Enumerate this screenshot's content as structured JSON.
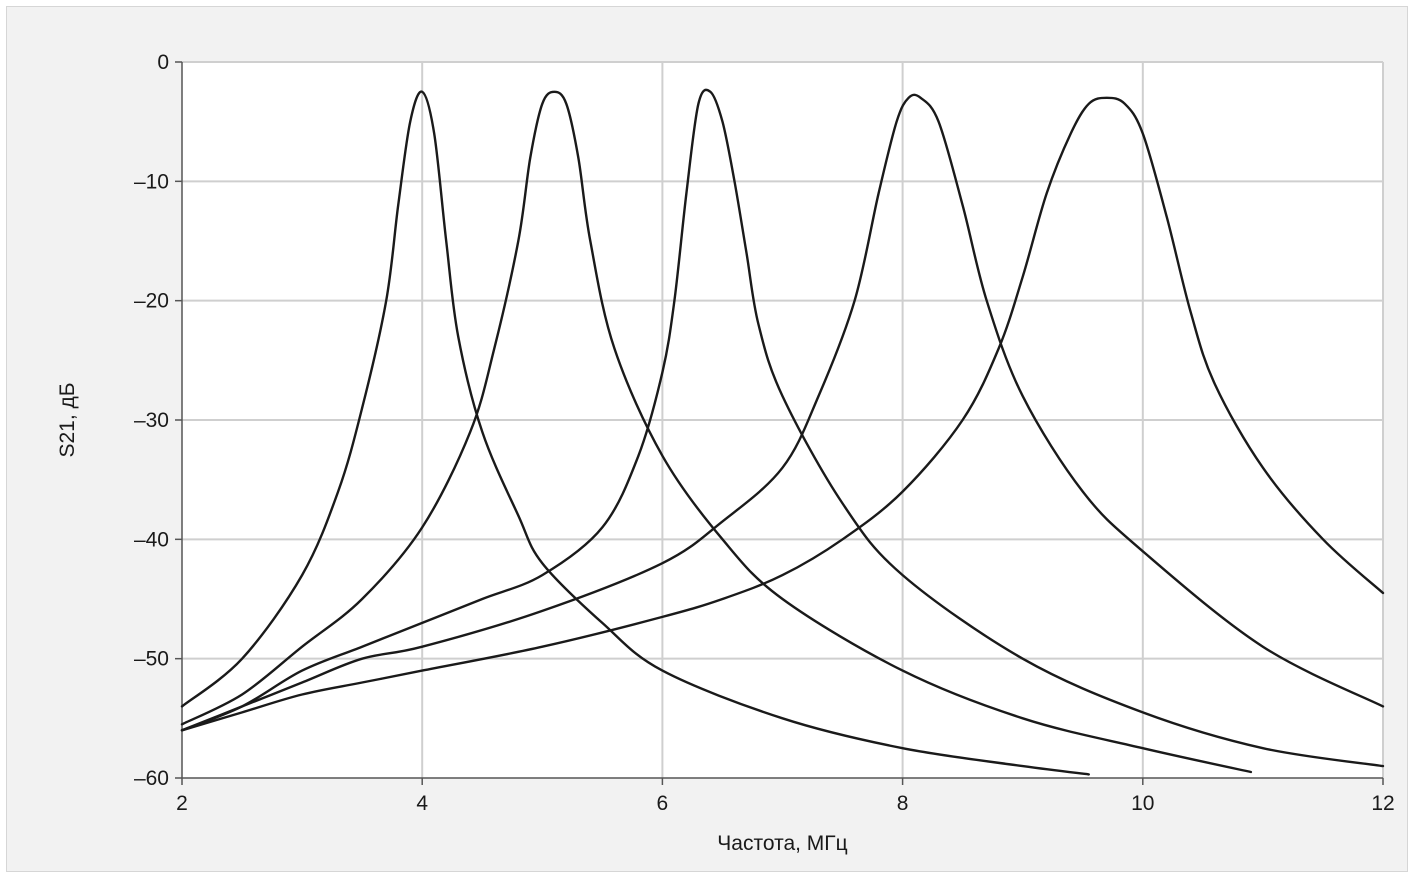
{
  "chart_data": {
    "type": "line",
    "title": "",
    "xlabel": "Частота, МГц",
    "ylabel": "S21, дБ",
    "xlim": [
      2,
      12
    ],
    "ylim": [
      -60,
      0
    ],
    "xticks": [
      2,
      4,
      6,
      8,
      10,
      12
    ],
    "yticks": [
      0,
      -10,
      -20,
      -30,
      -40,
      -50,
      -60
    ],
    "xtick_labels": [
      "2",
      "4",
      "6",
      "8",
      "10",
      "12"
    ],
    "ytick_labels": [
      "0",
      "–10",
      "–20",
      "–30",
      "–40",
      "–50",
      "–60"
    ],
    "grid": true,
    "line_color": "#1a1a1a",
    "series": [
      {
        "x": [
          2.0,
          2.5,
          3.0,
          3.3,
          3.5,
          3.7,
          3.8,
          3.9,
          4.0,
          4.1,
          4.2,
          4.3,
          4.5,
          4.8,
          5.0,
          5.5,
          6.0,
          7.0,
          8.0,
          9.0,
          9.55
        ],
        "y": [
          -54,
          -50,
          -43,
          -36,
          -29,
          -20,
          -12,
          -5,
          -2.5,
          -6,
          -15,
          -23,
          -31,
          -38,
          -42,
          -47,
          -51,
          -55,
          -57.5,
          -59,
          -59.7
        ]
      },
      {
        "x": [
          2.0,
          2.5,
          3.0,
          3.5,
          4.0,
          4.4,
          4.6,
          4.8,
          4.9,
          5.0,
          5.1,
          5.2,
          5.3,
          5.4,
          5.6,
          6.0,
          6.5,
          7.0,
          8.0,
          9.0,
          10.0,
          10.9
        ],
        "y": [
          -55.5,
          -53,
          -49,
          -45,
          -39,
          -31,
          -24,
          -15,
          -8,
          -3.5,
          -2.5,
          -3.5,
          -8,
          -15,
          -24,
          -33,
          -40,
          -45,
          -51,
          -55,
          -57.5,
          -59.5
        ]
      },
      {
        "x": [
          2.0,
          2.5,
          3.0,
          3.5,
          4.0,
          4.5,
          5.0,
          5.5,
          5.8,
          6.0,
          6.1,
          6.2,
          6.3,
          6.4,
          6.5,
          6.6,
          6.7,
          6.8,
          7.0,
          7.5,
          8.0,
          9.0,
          10.0,
          11.0,
          12.0
        ],
        "y": [
          -56,
          -54,
          -51,
          -49,
          -47,
          -45,
          -43,
          -39,
          -33,
          -26,
          -20,
          -11,
          -3.5,
          -2.5,
          -5,
          -10,
          -16,
          -22,
          -28,
          -37,
          -43,
          -50,
          -54.5,
          -57.5,
          -59
        ]
      },
      {
        "x": [
          2.0,
          2.5,
          3.0,
          3.5,
          4.0,
          5.0,
          6.0,
          6.5,
          7.0,
          7.3,
          7.6,
          7.8,
          7.95,
          8.05,
          8.15,
          8.3,
          8.5,
          8.7,
          9.0,
          9.5,
          10.0,
          11.0,
          12.0
        ],
        "y": [
          -56,
          -54,
          -52,
          -50,
          -49,
          -46,
          -42,
          -38.5,
          -34,
          -28,
          -20,
          -11,
          -5,
          -3,
          -3,
          -5,
          -12,
          -20,
          -28,
          -36,
          -41,
          -49,
          -54
        ]
      },
      {
        "x": [
          2.0,
          2.5,
          3.0,
          3.5,
          4.0,
          5.0,
          6.0,
          6.5,
          7.0,
          7.5,
          8.0,
          8.5,
          8.8,
          9.0,
          9.2,
          9.4,
          9.55,
          9.7,
          9.85,
          10.0,
          10.2,
          10.4,
          10.6,
          11.0,
          11.5,
          12.0
        ],
        "y": [
          -56,
          -54.5,
          -53,
          -52,
          -51,
          -49,
          -46.5,
          -45,
          -43,
          -40,
          -36,
          -30,
          -24,
          -18,
          -11,
          -6,
          -3.5,
          -3,
          -3.5,
          -6,
          -13,
          -21,
          -27,
          -34,
          -40,
          -44.5
        ]
      }
    ]
  }
}
